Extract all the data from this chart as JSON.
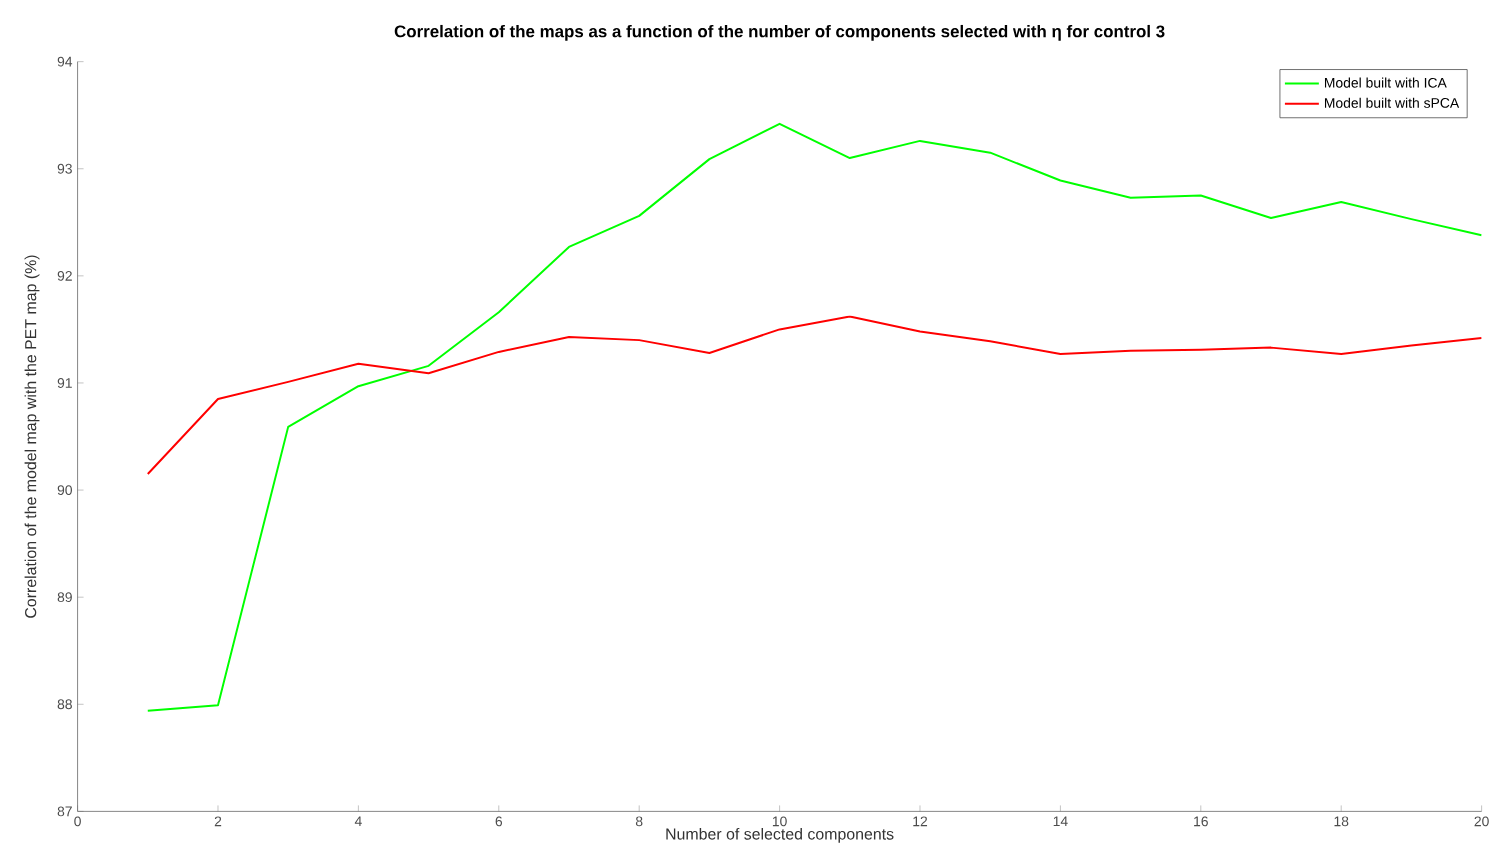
{
  "chart_data": {
    "type": "line",
    "title": "Correlation of the maps as a function of the number of components selected with η for control 3",
    "xlabel": "Number of selected components",
    "ylabel": "Correlation of the model map with the PET map (%)",
    "x": [
      1,
      2,
      3,
      4,
      5,
      6,
      7,
      8,
      9,
      10,
      11,
      12,
      13,
      14,
      15,
      16,
      17,
      18,
      19,
      20
    ],
    "series": [
      {
        "name": "Model built with ICA",
        "color": "#00ff00",
        "values": [
          87.94,
          87.99,
          90.59,
          90.97,
          91.16,
          91.66,
          92.27,
          92.56,
          93.09,
          93.42,
          93.1,
          93.26,
          93.15,
          92.89,
          92.73,
          92.75,
          92.54,
          92.69,
          92.53,
          92.38
        ]
      },
      {
        "name": "Model built with sPCA",
        "color": "#ff0000",
        "values": [
          90.15,
          90.85,
          91.01,
          91.18,
          91.09,
          91.29,
          91.43,
          91.4,
          91.28,
          91.5,
          91.62,
          91.48,
          91.39,
          91.27,
          91.3,
          91.31,
          91.33,
          91.27,
          91.35,
          91.42
        ]
      }
    ],
    "xlim": [
      0,
      20
    ],
    "ylim": [
      87,
      94
    ],
    "xticks": [
      0,
      2,
      4,
      6,
      8,
      10,
      12,
      14,
      16,
      18,
      20
    ],
    "yticks": [
      87,
      88,
      89,
      90,
      91,
      92,
      93,
      94
    ],
    "grid": false,
    "legend": "top right",
    "marker": "none",
    "line_style": "solid"
  }
}
